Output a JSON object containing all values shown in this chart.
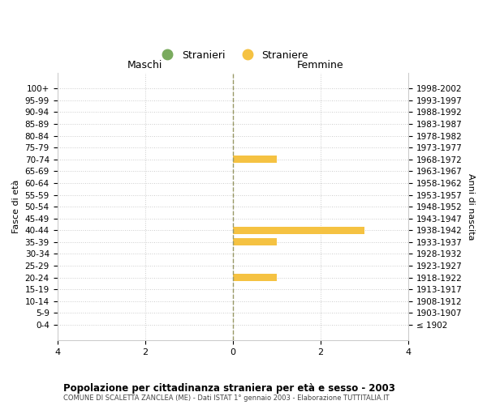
{
  "age_groups": [
    "100+",
    "95-99",
    "90-94",
    "85-89",
    "80-84",
    "75-79",
    "70-74",
    "65-69",
    "60-64",
    "55-59",
    "50-54",
    "45-49",
    "40-44",
    "35-39",
    "30-34",
    "25-29",
    "20-24",
    "15-19",
    "10-14",
    "5-9",
    "0-4"
  ],
  "birth_years": [
    "≤ 1902",
    "1903-1907",
    "1908-1912",
    "1913-1917",
    "1918-1922",
    "1923-1927",
    "1928-1932",
    "1933-1937",
    "1938-1942",
    "1943-1947",
    "1948-1952",
    "1953-1957",
    "1958-1962",
    "1963-1967",
    "1968-1972",
    "1973-1977",
    "1978-1982",
    "1983-1987",
    "1988-1992",
    "1993-1997",
    "1998-2002"
  ],
  "maschi_stranieri": [
    0,
    0,
    0,
    0,
    0,
    0,
    0,
    0,
    0,
    0,
    0,
    0,
    0,
    0,
    0,
    0,
    0,
    0,
    0,
    0,
    0
  ],
  "femmine_straniere": [
    0,
    0,
    0,
    0,
    0,
    0,
    1,
    0,
    0,
    0,
    0,
    0,
    3,
    1,
    0,
    0,
    1,
    0,
    0,
    0,
    0
  ],
  "xlim": 4,
  "color_maschi": "#7aab5e",
  "color_femmine": "#f5c242",
  "bg_color": "#ffffff",
  "grid_color": "#cccccc",
  "center_line_color": "#999966",
  "title_main": "Popolazione per cittadinanza straniera per età e sesso - 2003",
  "title_sub": "COMUNE DI SCALETTA ZANCLEA (ME) - Dati ISTAT 1° gennaio 2003 - Elaborazione TUTTITALIA.IT",
  "legend_stranieri": "Stranieri",
  "legend_straniere": "Straniere",
  "label_maschi": "Maschi",
  "label_femmine": "Femmine",
  "label_fasce": "Fasce di età",
  "label_anni": "Anni di nascita"
}
